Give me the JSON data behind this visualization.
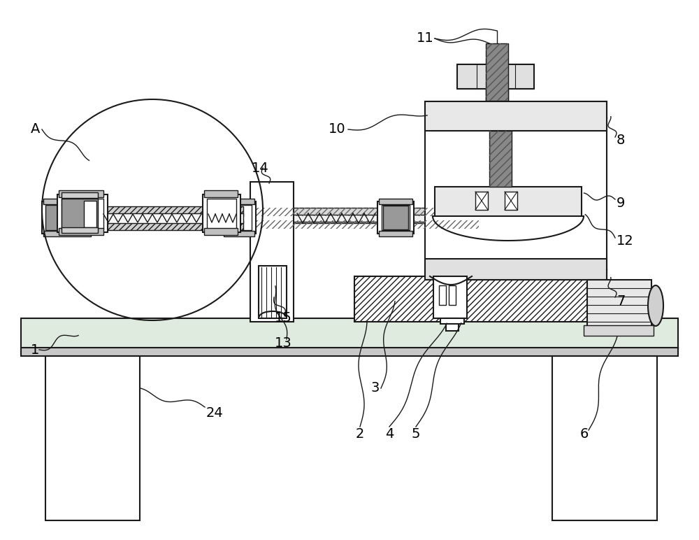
{
  "bg_color": "#ffffff",
  "line_color": "#1a1a1a",
  "gray_dark": "#888888",
  "gray_med": "#aaaaaa",
  "gray_light": "#d8d8d8",
  "gray_fill": "#999999"
}
